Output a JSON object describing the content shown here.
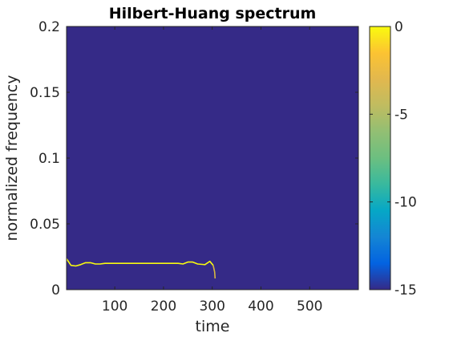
{
  "chart_data": {
    "type": "heatmap",
    "title": "Hilbert-Huang spectrum",
    "xlabel": "time",
    "ylabel": "normalized frequency",
    "xlim": [
      1,
      600
    ],
    "ylim": [
      0,
      0.2
    ],
    "xticks": [
      100,
      200,
      300,
      400,
      500
    ],
    "xtick_labels": [
      "100",
      "200",
      "300",
      "400",
      "500"
    ],
    "yticks": [
      0,
      0.05,
      0.1,
      0.15,
      0.2
    ],
    "ytick_labels": [
      "0",
      "0.05",
      "0.1",
      "0.15",
      "0.2"
    ],
    "colorbar": {
      "range": [
        -15,
        0
      ],
      "ticks": [
        0,
        -5,
        -10,
        -15
      ],
      "tick_labels": [
        "0",
        "-5",
        "-10",
        "-15"
      ],
      "colormap": "parula"
    },
    "background_value": -15,
    "series": [
      {
        "value": 0,
        "points": [
          [
            1,
            0.0235
          ],
          [
            10,
            0.0185
          ],
          [
            20,
            0.018
          ],
          [
            30,
            0.019
          ],
          [
            40,
            0.0205
          ],
          [
            50,
            0.0205
          ],
          [
            60,
            0.0195
          ],
          [
            70,
            0.0195
          ],
          [
            80,
            0.02
          ],
          [
            100,
            0.02
          ],
          [
            150,
            0.02
          ],
          [
            200,
            0.02
          ],
          [
            230,
            0.02
          ],
          [
            240,
            0.0195
          ],
          [
            250,
            0.021
          ],
          [
            260,
            0.021
          ],
          [
            270,
            0.0195
          ],
          [
            285,
            0.019
          ],
          [
            295,
            0.0215
          ],
          [
            302,
            0.0185
          ]
        ]
      },
      {
        "value": -2,
        "points": [
          [
            302,
            0.0185
          ],
          [
            305,
            0.0135
          ],
          [
            306,
            0.0085
          ]
        ]
      }
    ]
  },
  "colors": {
    "background_cell": "#352a87",
    "ridge": "#f9fb0e",
    "ridge_dim": "#d6b742",
    "axis": "#262626"
  }
}
